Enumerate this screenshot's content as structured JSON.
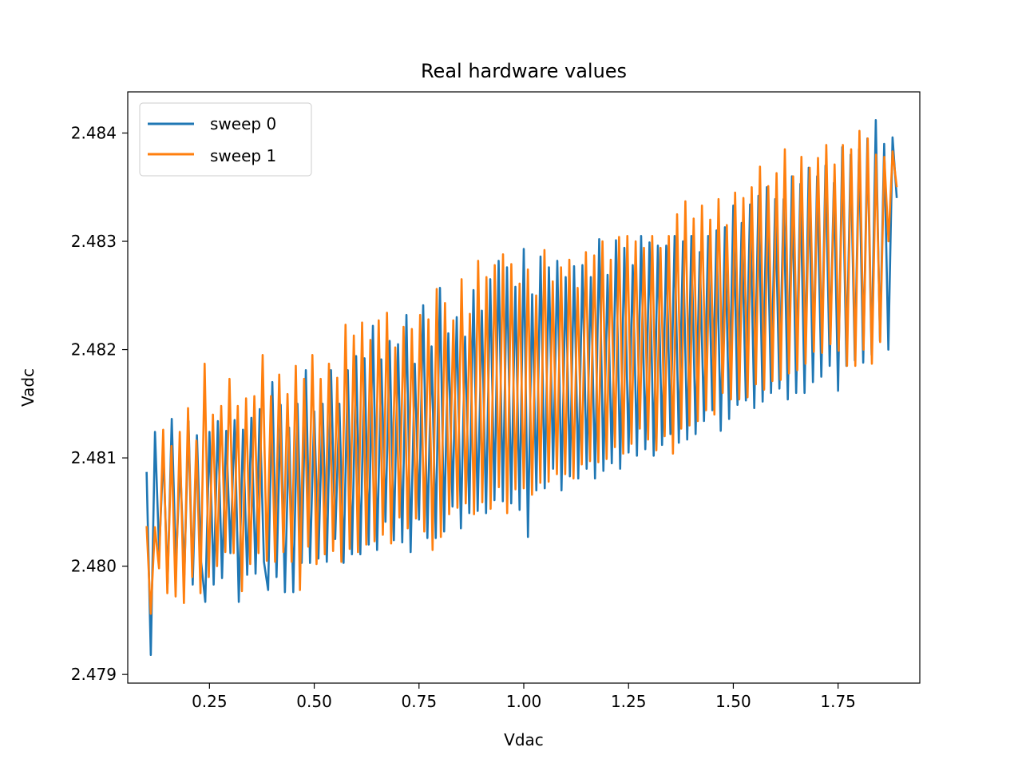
{
  "chart_data": {
    "type": "line",
    "title": "Real hardware values",
    "xlabel": "Vdac",
    "ylabel": "Vadc",
    "xlim": [
      0.055,
      1.945
    ],
    "ylim": [
      2.47892,
      2.48438
    ],
    "xticks": [
      0.25,
      0.5,
      0.75,
      1.0,
      1.25,
      1.5,
      1.75
    ],
    "xtick_labels": [
      "0.25",
      "0.50",
      "0.75",
      "1.00",
      "1.25",
      "1.50",
      "1.75"
    ],
    "yticks": [
      2.479,
      2.48,
      2.481,
      2.482,
      2.483,
      2.484
    ],
    "ytick_labels": [
      "2.479",
      "2.480",
      "2.481",
      "2.482",
      "2.483",
      "2.484"
    ],
    "grid": false,
    "legend_position": "upper-left",
    "series": [
      {
        "name": "sweep 0",
        "color": "#1f77b4",
        "x_start": 0.1,
        "x_end": 1.89,
        "points": 180,
        "values": [
          2.48087,
          2.47918,
          2.48124,
          2.48012,
          2.48105,
          2.47984,
          2.48136,
          2.48001,
          2.48095,
          2.47992,
          2.48134,
          2.47983,
          2.48121,
          2.48004,
          2.47967,
          2.48124,
          2.47983,
          2.48134,
          2.47989,
          2.48125,
          2.48012,
          2.48135,
          2.47967,
          2.48126,
          2.47992,
          2.48137,
          2.47993,
          2.48145,
          2.48004,
          2.47978,
          2.4817,
          2.4799,
          2.48149,
          2.47976,
          2.48128,
          2.47976,
          2.4815,
          2.48003,
          2.48181,
          2.48003,
          2.48143,
          2.48007,
          2.4815,
          2.48004,
          2.48181,
          2.48025,
          2.4815,
          2.48003,
          2.48181,
          2.48011,
          2.48194,
          2.48011,
          2.48192,
          2.4802,
          2.48222,
          2.48015,
          2.48191,
          2.48041,
          2.48208,
          2.48024,
          2.48205,
          2.48022,
          2.48232,
          2.48013,
          2.48187,
          2.48043,
          2.48241,
          2.48026,
          2.48203,
          2.48026,
          2.48257,
          2.48032,
          2.48215,
          2.48055,
          2.4823,
          2.48035,
          2.48212,
          2.48049,
          2.48255,
          2.48051,
          2.48236,
          2.48049,
          2.48265,
          2.48061,
          2.48282,
          2.4806,
          2.48276,
          2.48058,
          2.48258,
          2.48052,
          2.48293,
          2.48027,
          2.48251,
          2.4807,
          2.48286,
          2.48072,
          2.48276,
          2.4809,
          2.48282,
          2.4807,
          2.48267,
          2.48083,
          2.48277,
          2.48081,
          2.48278,
          2.4809,
          2.48267,
          2.48081,
          2.48302,
          2.48088,
          2.48269,
          2.48095,
          2.48301,
          2.4809,
          2.48294,
          2.48105,
          2.48278,
          2.48102,
          2.48305,
          2.48108,
          2.48299,
          2.48102,
          2.48296,
          2.48112,
          2.48296,
          2.48122,
          2.48305,
          2.48114,
          2.483,
          2.48117,
          2.48305,
          2.48122,
          2.4829,
          2.48134,
          2.48305,
          2.48144,
          2.4831,
          2.48125,
          2.48313,
          2.48136,
          2.48333,
          2.48149,
          2.48317,
          2.48153,
          2.48334,
          2.48146,
          2.48342,
          2.48152,
          2.4835,
          2.4816,
          2.48339,
          2.48164,
          2.48339,
          2.48154,
          2.4836,
          2.4816,
          2.48353,
          2.4816,
          2.48368,
          2.4817,
          2.4836,
          2.48175,
          2.4837,
          2.48185,
          2.48354,
          2.48162,
          2.48387,
          2.48185,
          2.4838,
          2.4819,
          2.48385,
          2.48188,
          2.48395,
          2.48195,
          2.48412,
          2.48208,
          2.4839,
          2.482,
          2.48396,
          2.4834
        ]
      },
      {
        "name": "sweep 1",
        "color": "#ff7f0e",
        "x_start": 0.1,
        "x_end": 1.89,
        "points": 180,
        "values": [
          2.48037,
          2.47956,
          2.48036,
          2.47998,
          2.48126,
          2.47975,
          2.48111,
          2.47972,
          2.48124,
          2.47966,
          2.48146,
          2.4799,
          2.48116,
          2.47975,
          2.48187,
          2.4799,
          2.4814,
          2.48,
          2.48148,
          2.48013,
          2.48173,
          2.48012,
          2.48148,
          2.47977,
          2.48155,
          2.48002,
          2.48157,
          2.48012,
          2.48195,
          2.48005,
          2.48157,
          2.48004,
          2.48177,
          2.48013,
          2.48159,
          2.48004,
          2.48185,
          2.47978,
          2.48173,
          2.48018,
          2.48195,
          2.48002,
          2.48173,
          2.48011,
          2.48187,
          2.48014,
          2.48174,
          2.48004,
          2.48223,
          2.48016,
          2.48213,
          2.48013,
          2.48225,
          2.4802,
          2.48209,
          2.48023,
          2.48227,
          2.48029,
          2.48234,
          2.48021,
          2.48202,
          2.48045,
          2.48221,
          2.48035,
          2.48219,
          2.48044,
          2.48232,
          2.48032,
          2.48228,
          2.48015,
          2.48256,
          2.48027,
          2.48243,
          2.48048,
          2.48227,
          2.48054,
          2.48265,
          2.48058,
          2.48233,
          2.48048,
          2.48282,
          2.48059,
          2.48267,
          2.48053,
          2.48278,
          2.48073,
          2.48288,
          2.48049,
          2.48279,
          2.48071,
          2.48261,
          2.48072,
          2.48274,
          2.48066,
          2.4825,
          2.48077,
          2.48292,
          2.48078,
          2.48263,
          2.48085,
          2.48276,
          2.48085,
          2.48283,
          2.48081,
          2.48257,
          2.48094,
          2.4829,
          2.48097,
          2.48287,
          2.48096,
          2.483,
          2.48099,
          2.48283,
          2.4811,
          2.48304,
          2.48104,
          2.48305,
          2.48113,
          2.483,
          2.48127,
          2.48294,
          2.48117,
          2.48305,
          2.48107,
          2.48294,
          2.4812,
          2.48305,
          2.48104,
          2.48325,
          2.48127,
          2.48337,
          2.4813,
          2.48321,
          2.48134,
          2.48333,
          2.48144,
          2.4832,
          2.4814,
          2.48339,
          2.4816,
          2.48315,
          2.48154,
          2.48345,
          2.48154,
          2.4834,
          2.48156,
          2.4835,
          2.48168,
          2.48369,
          2.48163,
          2.48351,
          2.48171,
          2.48363,
          2.48172,
          2.48385,
          2.48178,
          2.4836,
          2.48181,
          2.48378,
          2.48187,
          2.48368,
          2.48198,
          2.48377,
          2.48197,
          2.48389,
          2.48205,
          2.48371,
          2.48199,
          2.48389,
          2.48185,
          2.48385,
          2.48185,
          2.48402,
          2.482,
          2.48395,
          2.48187,
          2.4838,
          2.48207,
          2.48378,
          2.483,
          2.48383,
          2.4835
        ]
      }
    ]
  }
}
